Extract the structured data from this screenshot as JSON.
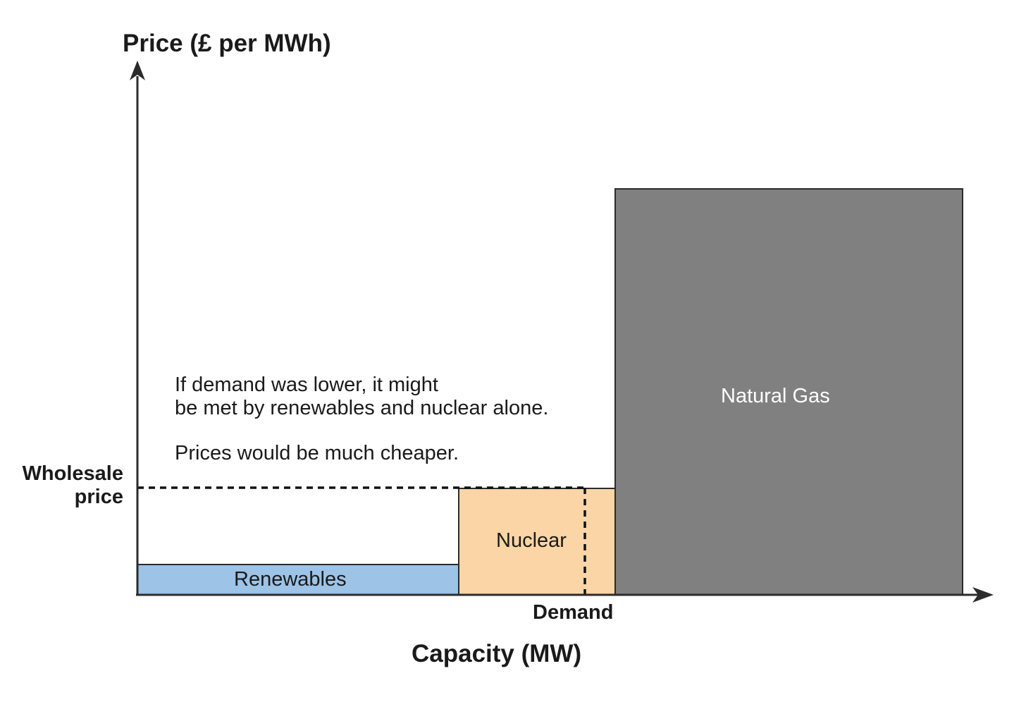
{
  "diagram": {
    "y_axis_title": "Price (£ per MWh)",
    "x_axis_title": "Capacity (MW)",
    "demand_label": "Demand",
    "wholesale_label_line1": "Wholesale",
    "wholesale_label_line2": "price",
    "note_line1": "If demand was lower, it might",
    "note_line2": "be met by renewables and nuclear alone.",
    "note_line3": "Prices would be much cheaper.",
    "blocks": [
      {
        "name": "renewables",
        "label": "Renewables",
        "color": "#9dc3e6"
      },
      {
        "name": "nuclear",
        "label": "Nuclear",
        "color": "#fbd5a5"
      },
      {
        "name": "natural-gas",
        "label": "Natural Gas",
        "color": "#808080"
      }
    ],
    "axis_color": "#2b2b2b"
  }
}
